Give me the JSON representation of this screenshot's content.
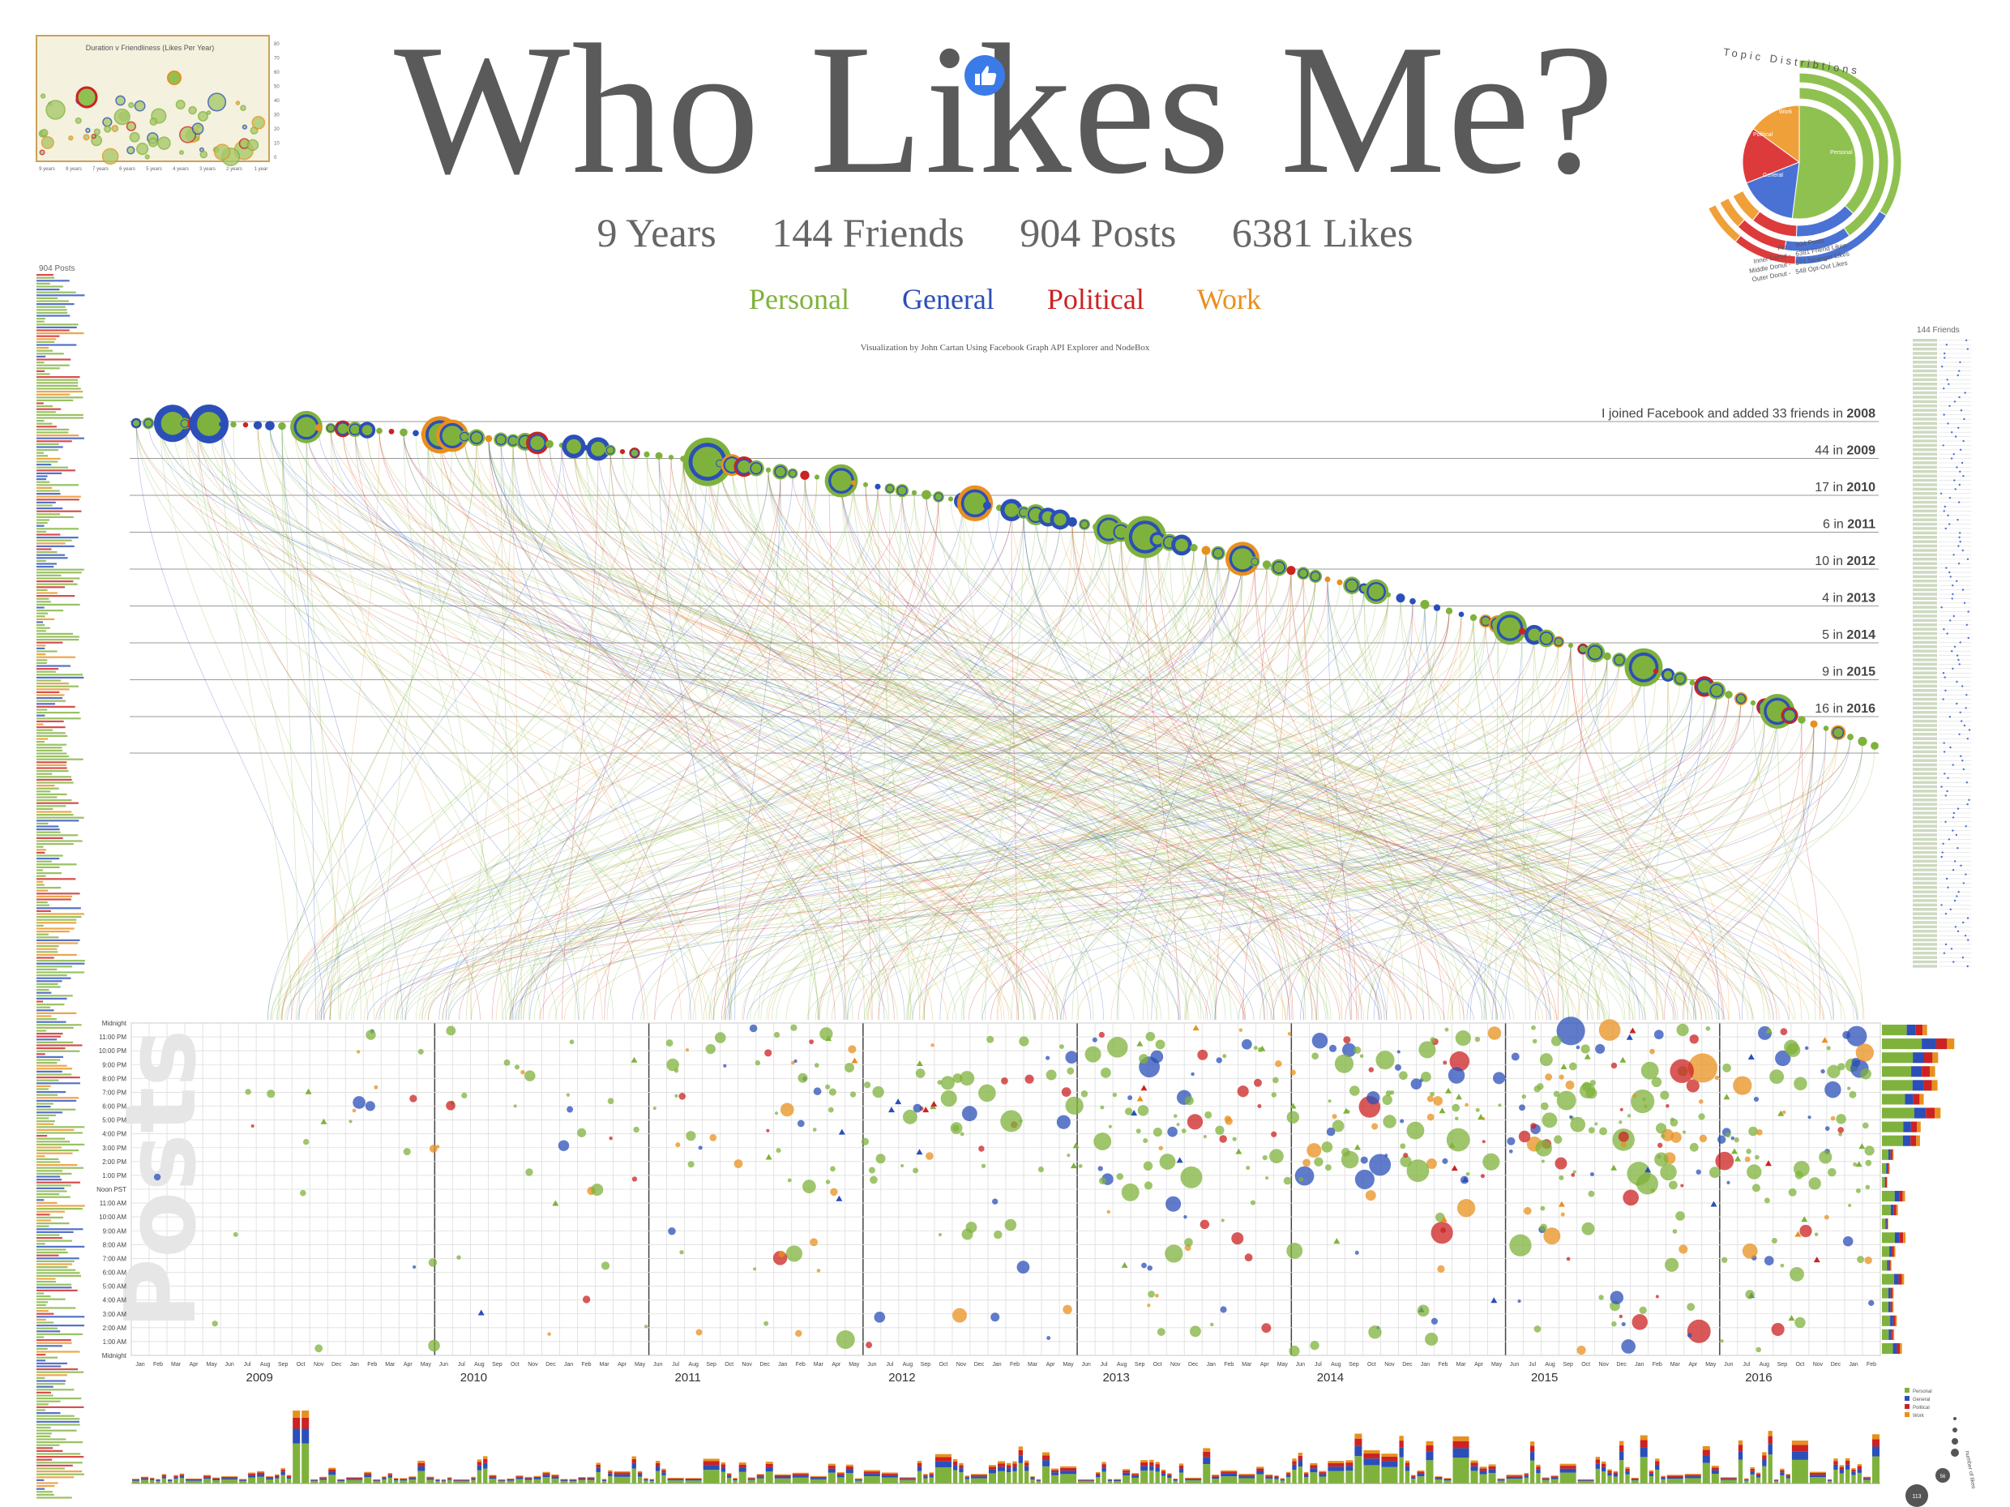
{
  "header": {
    "title": "Who Likes Me?",
    "stats": [
      "9 Years",
      "144 Friends",
      "904 Posts",
      "6381 Likes"
    ],
    "categories": [
      {
        "label": "Personal",
        "color": "#7fb23c"
      },
      {
        "label": "General",
        "color": "#2b4fb8"
      },
      {
        "label": "Political",
        "color": "#cc2222"
      },
      {
        "label": "Work",
        "color": "#e8901e"
      }
    ],
    "credit": "Visualization by John Cartan Using Facebook Graph API Explorer and NodeBox"
  },
  "side_labels": {
    "posts_count": "904 Posts",
    "friends_count": "144 Friends",
    "posts_watermark": "Posts"
  },
  "icons": {
    "like": "thumbs-up-icon"
  },
  "chart_data": [
    {
      "id": "duration-friendliness",
      "type": "scatter",
      "title": "Duration v Friendliness (Likes Per Year)",
      "x_tick_labels": [
        "9 years",
        "8 years",
        "7 years",
        "6 years",
        "5 years",
        "4 years",
        "3 years",
        "2 years",
        "1 year"
      ],
      "y_tick_labels": [
        "0",
        "10",
        "20",
        "30",
        "40",
        "50",
        "60",
        "70",
        "80"
      ],
      "ylim": [
        0,
        80
      ]
    },
    {
      "id": "topic-distributions",
      "type": "pie",
      "title": "Topic Distribtions",
      "pie_labels": [
        "Personal",
        "General",
        "Political",
        "Work"
      ],
      "legend": [
        {
          "label": "Pie",
          "value": "904 Posts"
        },
        {
          "label": "Inner Donut",
          "value": "6381 Friend Likes"
        },
        {
          "label": "Middle Donut",
          "value": "571 Stranger Likes"
        },
        {
          "label": "Outer Donut",
          "value": "548 Opt-Out Likes"
        }
      ],
      "pie_fractions": {
        "Personal": 0.52,
        "General": 0.17,
        "Political": 0.16,
        "Work": 0.15
      }
    },
    {
      "id": "friends-by-year",
      "type": "table",
      "rows": [
        {
          "label": "I joined Facebook and added 33 friends in",
          "year": "2008"
        },
        {
          "label": "44 in",
          "year": "2009"
        },
        {
          "label": "17 in",
          "year": "2010"
        },
        {
          "label": "6 in",
          "year": "2011"
        },
        {
          "label": "10 in",
          "year": "2012"
        },
        {
          "label": "4 in",
          "year": "2013"
        },
        {
          "label": "5 in",
          "year": "2014"
        },
        {
          "label": "9 in",
          "year": "2015"
        },
        {
          "label": "16 in",
          "year": "2016"
        }
      ]
    },
    {
      "id": "posts-timeline",
      "type": "scatter",
      "years": [
        "2009",
        "2010",
        "2011",
        "2012",
        "2013",
        "2014",
        "2015",
        "2016"
      ],
      "months": [
        "Jan",
        "Feb",
        "Mar",
        "Apr",
        "May",
        "Jun",
        "Jul",
        "Aug",
        "Sep",
        "Oct",
        "Nov",
        "Dec"
      ],
      "hour_labels": [
        "Midnight",
        "11:00 PM",
        "10:00 PM",
        "9:00 PM",
        "8:00 PM",
        "7:00 PM",
        "6:00 PM",
        "5:00 PM",
        "4:00 PM",
        "3:00 PM",
        "2:00 PM",
        "1:00 PM",
        "Noon PST",
        "11:00 AM",
        "10:00 AM",
        "9:00 AM",
        "8:00 AM",
        "7:00 AM",
        "6:00 AM",
        "5:00 AM",
        "4:00 AM",
        "3:00 AM",
        "2:00 AM",
        "1:00 AM",
        "Midnight"
      ]
    },
    {
      "id": "likes-per-month",
      "type": "bar",
      "legend": [
        "Personal",
        "General",
        "Political",
        "Work"
      ],
      "size_legend_values": [
        "113",
        "56"
      ],
      "size_legend_label": "number of likes"
    }
  ]
}
